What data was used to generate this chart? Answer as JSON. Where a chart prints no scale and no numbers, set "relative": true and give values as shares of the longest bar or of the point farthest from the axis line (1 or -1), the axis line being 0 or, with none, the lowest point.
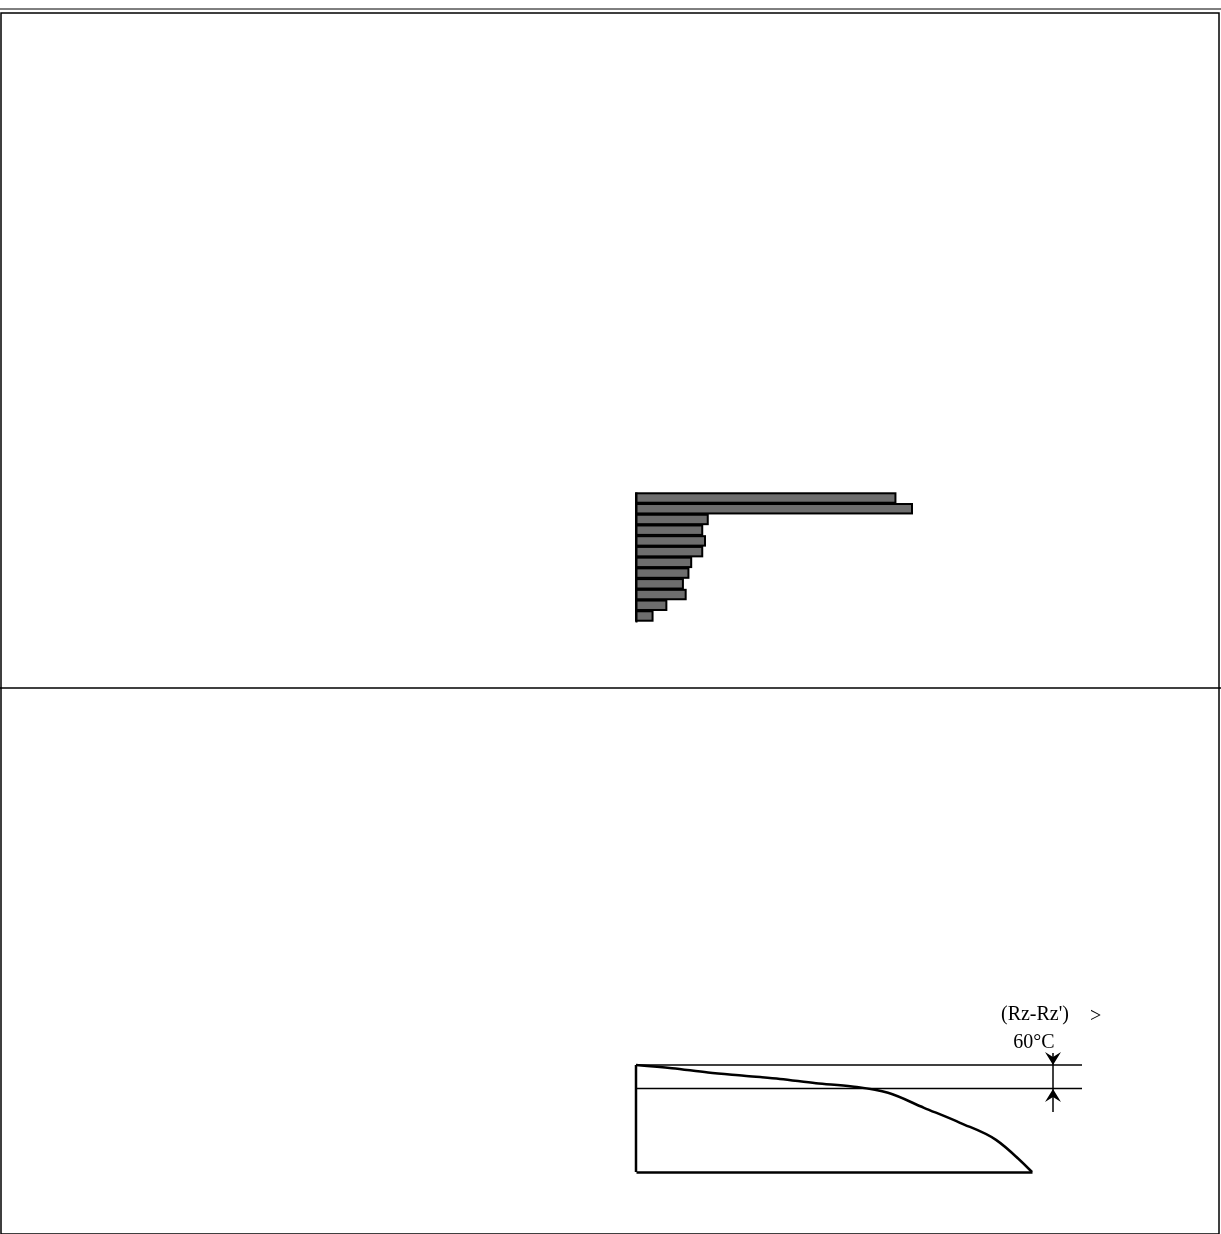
{
  "chart_data": [
    {
      "type": "bar",
      "orientation": "horizontal",
      "relative": true,
      "categories": [
        null,
        null,
        null,
        null,
        null,
        null,
        null,
        null,
        null,
        null,
        null,
        null
      ],
      "values": [
        0.94,
        1,
        0.26,
        0.24,
        0.25,
        0.24,
        0.2,
        0.19,
        0.17,
        0.18,
        0.11,
        0.06
      ],
      "color": "#6e6e6e"
    },
    {
      "type": "line",
      "relative": true,
      "categories": [
        null,
        null,
        null,
        null,
        null,
        null,
        null,
        null,
        null,
        null,
        null,
        null
      ],
      "series": [
        {
          "color": "#000000",
          "values": [
            1,
            0.97,
            0.93,
            0.9,
            0.87,
            0.83,
            0.8,
            0.74,
            0.6,
            0.46,
            0.3,
            0
          ]
        }
      ],
      "ref_lines": [
        {
          "axis": "y",
          "value": 1
        },
        {
          "axis": "y",
          "value": 0.78
        }
      ],
      "annotations": [
        "(Rz-Rz')",
        ">",
        "60°C"
      ],
      "marker": "none",
      "line_style": "solid"
    }
  ]
}
